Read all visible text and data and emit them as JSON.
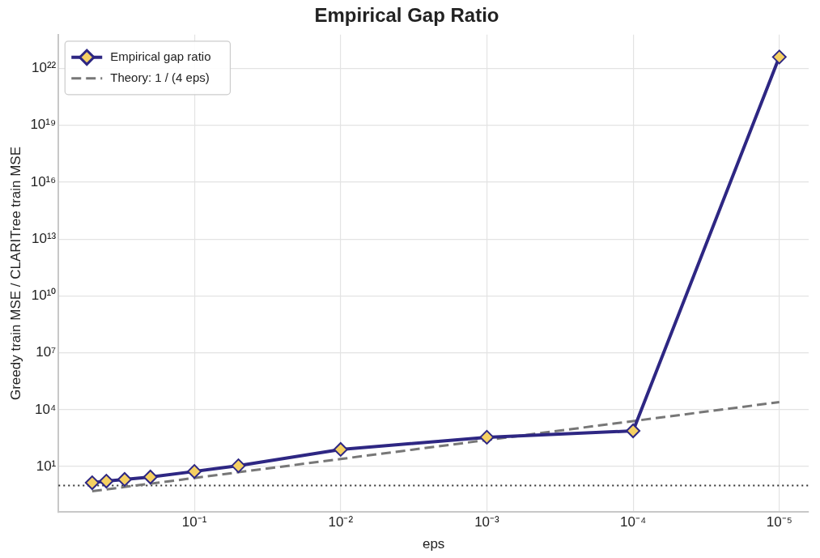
{
  "chart_data": {
    "type": "line",
    "title": "Empirical Gap Ratio",
    "xlabel": "eps",
    "ylabel": "Greedy train MSE / CLARITree train MSE",
    "log": "xy",
    "grid": true,
    "legend": "top left",
    "xlim": [
      0.85,
      6.3e-06
    ],
    "xticks": [
      {
        "value": 0.1,
        "label": "10⁻¹"
      },
      {
        "value": 0.01,
        "label": "10⁻²"
      },
      {
        "value": 0.001,
        "label": "10⁻³"
      },
      {
        "value": 0.0001,
        "label": "10⁻⁴"
      },
      {
        "value": 1e-05,
        "label": "10⁻⁵"
      }
    ],
    "ylim": [
      0.04,
      6e+23
    ],
    "yticks": [
      {
        "value": 10,
        "label": "10¹"
      },
      {
        "value": 10000,
        "label": "10⁴"
      },
      {
        "value": 10000000.0,
        "label": "10⁷"
      },
      {
        "value": 10000000000.0,
        "label": "10¹⁰"
      },
      {
        "value": 10000000000000.0,
        "label": "10¹³"
      },
      {
        "value": 1e+16,
        "label": "10¹⁶"
      },
      {
        "value": 1e+19,
        "label": "10¹⁹"
      },
      {
        "value": 1e+22,
        "label": "10²²"
      }
    ],
    "series": [
      {
        "name": "Empirical gap ratio",
        "color": "#2e2783",
        "marker": "diamond",
        "line_style": "solid",
        "x": [
          0.5,
          0.4,
          0.3,
          0.2,
          0.1,
          0.05,
          0.01,
          0.001,
          0.0001,
          1e-05
        ],
        "values": [
          1.4,
          1.7,
          2.1,
          2.8,
          5.5,
          11,
          80,
          350,
          760,
          4e+22
        ]
      },
      {
        "name": "Theory: 1 / (4 eps)",
        "color": "#777777",
        "marker": "none",
        "line_style": "dashed",
        "x": [
          0.5,
          0.4,
          0.3,
          0.2,
          0.1,
          0.05,
          0.01,
          0.001,
          0.0001,
          1e-05
        ],
        "values": [
          0.5,
          0.625,
          0.833,
          1.25,
          2.5,
          5,
          25,
          250,
          2500,
          25000
        ]
      }
    ],
    "ref_lines": [
      {
        "axis": "y",
        "value": 1,
        "color": "#333333",
        "line_style": "dotted"
      }
    ]
  }
}
